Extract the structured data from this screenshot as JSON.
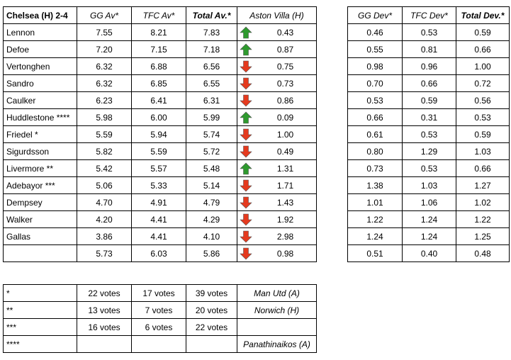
{
  "main": {
    "headers": {
      "title": "Chelsea (H) 2-4",
      "gg": "GG Av*",
      "tfc": "TFC Av*",
      "total": "Total Av.*",
      "opponent": "Aston Villa (H)"
    },
    "rows": [
      {
        "player": "Lennon",
        "gg": "7.55",
        "tfc": "8.21",
        "total": "7.83",
        "arrow": "up",
        "diff": "0.43"
      },
      {
        "player": "Defoe",
        "gg": "7.20",
        "tfc": "7.15",
        "total": "7.18",
        "arrow": "up",
        "diff": "0.87"
      },
      {
        "player": "Vertonghen",
        "gg": "6.32",
        "tfc": "6.88",
        "total": "6.56",
        "arrow": "down",
        "diff": "0.75"
      },
      {
        "player": "Sandro",
        "gg": "6.32",
        "tfc": "6.85",
        "total": "6.55",
        "arrow": "down",
        "diff": "0.73"
      },
      {
        "player": "Caulker",
        "gg": "6.23",
        "tfc": "6.41",
        "total": "6.31",
        "arrow": "down",
        "diff": "0.86"
      },
      {
        "player": "Huddlestone ****",
        "gg": "5.98",
        "tfc": "6.00",
        "total": "5.99",
        "arrow": "up",
        "diff": "0.09"
      },
      {
        "player": "Friedel *",
        "gg": "5.59",
        "tfc": "5.94",
        "total": "5.74",
        "arrow": "down",
        "diff": "1.00"
      },
      {
        "player": "Sigurdsson",
        "gg": "5.82",
        "tfc": "5.59",
        "total": "5.72",
        "arrow": "down",
        "diff": "0.49"
      },
      {
        "player": "Livermore **",
        "gg": "5.42",
        "tfc": "5.57",
        "total": "5.48",
        "arrow": "up",
        "diff": "1.31"
      },
      {
        "player": "Adebayor ***",
        "gg": "5.06",
        "tfc": "5.33",
        "total": "5.14",
        "arrow": "down",
        "diff": "1.71"
      },
      {
        "player": "Dempsey",
        "gg": "4.70",
        "tfc": "4.91",
        "total": "4.79",
        "arrow": "down",
        "diff": "1.43"
      },
      {
        "player": "Walker",
        "gg": "4.20",
        "tfc": "4.41",
        "total": "4.29",
        "arrow": "down",
        "diff": "1.92"
      },
      {
        "player": "Gallas",
        "gg": "3.86",
        "tfc": "4.41",
        "total": "4.10",
        "arrow": "down",
        "diff": "2.98"
      },
      {
        "player": "",
        "gg": "5.73",
        "tfc": "6.03",
        "total": "5.86",
        "arrow": "down",
        "diff": "0.98"
      }
    ]
  },
  "dev": {
    "headers": {
      "gg": "GG Dev*",
      "tfc": "TFC Dev*",
      "total": "Total Dev.*"
    },
    "rows": [
      {
        "gg": "0.46",
        "tfc": "0.53",
        "total": "0.59"
      },
      {
        "gg": "0.55",
        "tfc": "0.81",
        "total": "0.66"
      },
      {
        "gg": "0.98",
        "tfc": "0.96",
        "total": "1.00"
      },
      {
        "gg": "0.70",
        "tfc": "0.66",
        "total": "0.72"
      },
      {
        "gg": "0.53",
        "tfc": "0.59",
        "total": "0.56"
      },
      {
        "gg": "0.66",
        "tfc": "0.31",
        "total": "0.53"
      },
      {
        "gg": "0.61",
        "tfc": "0.53",
        "total": "0.59"
      },
      {
        "gg": "0.80",
        "tfc": "1.29",
        "total": "1.03"
      },
      {
        "gg": "0.73",
        "tfc": "0.53",
        "total": "0.66"
      },
      {
        "gg": "1.38",
        "tfc": "1.03",
        "total": "1.27"
      },
      {
        "gg": "1.01",
        "tfc": "1.06",
        "total": "1.02"
      },
      {
        "gg": "1.22",
        "tfc": "1.24",
        "total": "1.22"
      },
      {
        "gg": "1.24",
        "tfc": "1.24",
        "total": "1.25"
      },
      {
        "gg": "0.51",
        "tfc": "0.40",
        "total": "0.48"
      }
    ]
  },
  "votes": {
    "rows": [
      {
        "key": "*",
        "gg": "22 votes",
        "tfc": "17 votes",
        "total": "39 votes",
        "match": "Man Utd (A)"
      },
      {
        "key": "**",
        "gg": "13 votes",
        "tfc": "7 votes",
        "total": "20 votes",
        "match": "Norwich (H)"
      },
      {
        "key": "***",
        "gg": "16 votes",
        "tfc": "6 votes",
        "total": "22 votes",
        "match": ""
      },
      {
        "key": "****",
        "gg": "",
        "tfc": "",
        "total": "",
        "match": "Panathinaikos (A)"
      }
    ]
  },
  "colors": {
    "up": "#2e9a2e",
    "down": "#e53a1e"
  },
  "icons": {
    "up": "arrow-up-icon",
    "down": "arrow-down-icon"
  }
}
